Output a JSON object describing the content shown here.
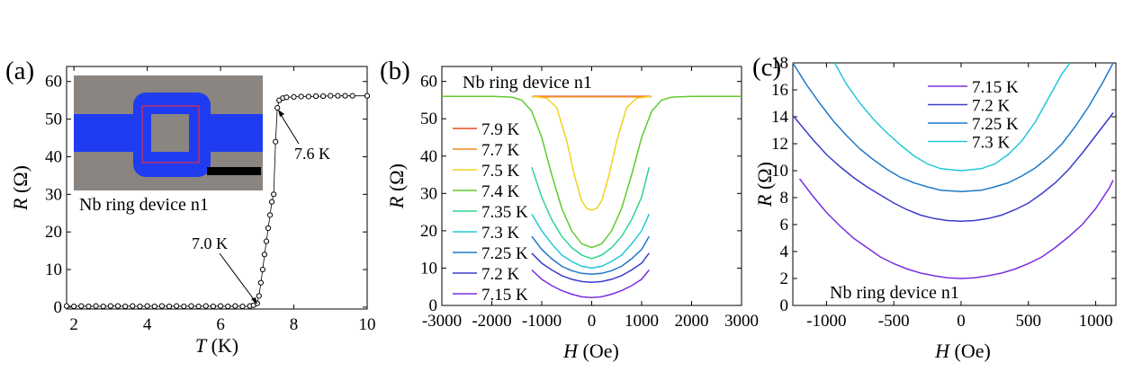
{
  "chart_data": [
    {
      "panel_label": "(a)",
      "type": "scatter",
      "xlabel_var": "T",
      "xlabel_unit": " (K)",
      "ylabel_var": "R",
      "ylabel_unit": " (Ω)",
      "xlim": [
        1.8,
        10.0
      ],
      "ylim": [
        -0.5,
        64
      ],
      "xticks": [
        "2",
        "4",
        "6",
        "8",
        "10"
      ],
      "yticks": [
        "0",
        "10",
        "20",
        "30",
        "40",
        "50",
        "60"
      ],
      "inset_label": "Nb ring device n1",
      "annotations": [
        "7.0 K",
        "7.6 K"
      ],
      "colors": {
        "data": "#000000",
        "inset_bg": "#8a8580",
        "ring": "#1f3cf0",
        "box": "#e0304a"
      },
      "series": [
        {
          "x": [
            1.8,
            2.0,
            2.2,
            2.4,
            2.6,
            2.8,
            3.0,
            3.2,
            3.4,
            3.6,
            3.8,
            4.0,
            4.2,
            4.4,
            4.6,
            4.8,
            5.0,
            5.2,
            5.4,
            5.6,
            5.8,
            6.0,
            6.2,
            6.4,
            6.6,
            6.8,
            6.9,
            7.0,
            7.05,
            7.1,
            7.15,
            7.2,
            7.25,
            7.3,
            7.35,
            7.4,
            7.45,
            7.5,
            7.55,
            7.6,
            7.7,
            7.8,
            8.0,
            8.2,
            8.4,
            8.6,
            8.8,
            9.0,
            9.2,
            9.4,
            9.6,
            10.0
          ],
          "y": [
            0.3,
            0.2,
            0.3,
            0.2,
            0.3,
            0.2,
            0.3,
            0.3,
            0.2,
            0.3,
            0.2,
            0.3,
            0.2,
            0.3,
            0.2,
            0.3,
            0.2,
            0.3,
            0.2,
            0.3,
            0.2,
            0.3,
            0.2,
            0.3,
            0.2,
            0.3,
            0.5,
            1.0,
            3.0,
            6.5,
            10.0,
            14.0,
            17.5,
            21.0,
            24.5,
            28.0,
            30.0,
            44.0,
            53.0,
            55.0,
            55.6,
            55.8,
            55.9,
            56.0,
            56.0,
            56.1,
            56.1,
            56.2,
            56.2,
            56.2,
            56.2,
            56.2
          ]
        }
      ]
    },
    {
      "panel_label": "(b)",
      "type": "line",
      "xlabel_var": "H",
      "xlabel_unit": " (Oe)",
      "ylabel_var": "R",
      "ylabel_unit": " (Ω)",
      "xlim": [
        -3000,
        3000
      ],
      "ylim": [
        0,
        64
      ],
      "xticks": [
        "-3000",
        "-2000",
        "-1000",
        "0",
        "1000",
        "2000",
        "3000"
      ],
      "yticks": [
        "0",
        "10",
        "20",
        "30",
        "40",
        "50",
        "60"
      ],
      "inner_title": "Nb ring device n1",
      "series": [
        {
          "name": "7.9 K",
          "color": "#e64b1e",
          "x": [
            -1200,
            -800,
            -400,
            0,
            400,
            800,
            1200
          ],
          "y": [
            56,
            56,
            56,
            56,
            56,
            56,
            56
          ]
        },
        {
          "name": "7.7 K",
          "color": "#f08a1e",
          "x": [
            -1200,
            -800,
            -400,
            0,
            400,
            800,
            1200
          ],
          "y": [
            55.9,
            55.9,
            55.9,
            55.9,
            55.9,
            55.9,
            55.9
          ]
        },
        {
          "name": "7.5 K",
          "color": "#f2d21e",
          "x": [
            -1200,
            -900,
            -700,
            -500,
            -350,
            -200,
            -100,
            0,
            100,
            200,
            350,
            500,
            700,
            900,
            1200
          ],
          "y": [
            56,
            55.5,
            53,
            44,
            35,
            28,
            26,
            25.5,
            26,
            28,
            35,
            44,
            53,
            55.5,
            56
          ]
        },
        {
          "name": "7.4 K",
          "color": "#5fcc2e",
          "x": [
            -3000,
            -2000,
            -1600,
            -1400,
            -1200,
            -1000,
            -800,
            -600,
            -400,
            -200,
            0,
            200,
            400,
            600,
            800,
            1000,
            1200,
            1400,
            1600,
            2000,
            3000
          ],
          "y": [
            56,
            56,
            55.8,
            55,
            52,
            45,
            35,
            26,
            20,
            16.5,
            15.5,
            16.5,
            20,
            26,
            35,
            45,
            52,
            55,
            55.8,
            56,
            56
          ]
        },
        {
          "name": "7.35 K",
          "color": "#2ed48a",
          "x": [
            -1200,
            -1000,
            -800,
            -600,
            -400,
            -200,
            0,
            200,
            400,
            600,
            800,
            1000,
            1150
          ],
          "y": [
            37,
            29,
            23,
            18.5,
            15.5,
            13.5,
            12.5,
            13.5,
            15.5,
            18.5,
            23,
            29,
            37
          ]
        },
        {
          "name": "7.3 K",
          "color": "#22c8d8",
          "x": [
            -1200,
            -1000,
            -800,
            -600,
            -400,
            -200,
            0,
            200,
            400,
            600,
            800,
            1000,
            1150
          ],
          "y": [
            24.5,
            20,
            16.5,
            13.5,
            11.8,
            10.5,
            10,
            10.5,
            11.8,
            13.5,
            16.5,
            20,
            24.5
          ]
        },
        {
          "name": "7.25 K",
          "color": "#1e78c8",
          "x": [
            -1200,
            -1000,
            -800,
            -600,
            -400,
            -200,
            0,
            200,
            400,
            600,
            800,
            1000,
            1150
          ],
          "y": [
            18.5,
            15,
            12.5,
            10.5,
            9.3,
            8.6,
            8.4,
            8.6,
            9.3,
            10.5,
            12.5,
            15,
            18.5
          ]
        },
        {
          "name": "7.2 K",
          "color": "#3a3cc8",
          "x": [
            -1200,
            -1000,
            -800,
            -600,
            -400,
            -200,
            0,
            200,
            400,
            600,
            800,
            1000,
            1150
          ],
          "y": [
            14,
            11.3,
            9.5,
            8,
            7,
            6.4,
            6.2,
            6.4,
            7,
            8,
            9.5,
            11.3,
            14
          ]
        },
        {
          "name": "7.15 K",
          "color": "#7a2ee0",
          "x": [
            -1200,
            -1000,
            -800,
            -600,
            -400,
            -200,
            0,
            200,
            400,
            600,
            800,
            1000,
            1150
          ],
          "y": [
            9.5,
            7,
            5.3,
            4,
            3,
            2.3,
            2.1,
            2.3,
            3,
            4,
            5.3,
            7,
            9.5
          ]
        }
      ]
    },
    {
      "panel_label": "(c)",
      "type": "line",
      "xlabel_var": "H",
      "xlabel_unit": " (Oe)",
      "ylabel_var": "R",
      "ylabel_unit": " (Ω)",
      "xlim": [
        -1250,
        1150
      ],
      "ylim": [
        0,
        18
      ],
      "xticks": [
        "-1000",
        "-500",
        "0",
        "500",
        "1000"
      ],
      "yticks": [
        "0",
        "2",
        "4",
        "6",
        "8",
        "10",
        "12",
        "14",
        "16",
        "18"
      ],
      "inner_title": "Nb ring device n1",
      "series": [
        {
          "name": "7.15 K",
          "color": "#7a2ee0",
          "x": [
            -1200,
            -1100,
            -1000,
            -900,
            -800,
            -700,
            -600,
            -500,
            -400,
            -300,
            -200,
            -100,
            0,
            100,
            200,
            300,
            400,
            500,
            600,
            700,
            800,
            900,
            1000,
            1100,
            1130
          ],
          "y": [
            9.4,
            8.1,
            6.9,
            5.9,
            5.0,
            4.3,
            3.6,
            3.1,
            2.7,
            2.4,
            2.2,
            2.05,
            2.0,
            2.05,
            2.2,
            2.4,
            2.7,
            3.1,
            3.6,
            4.3,
            5.1,
            6.0,
            7.2,
            8.7,
            9.3
          ]
        },
        {
          "name": "7.2 K",
          "color": "#3a3cc8",
          "x": [
            -1250,
            -1100,
            -1000,
            -900,
            -800,
            -700,
            -600,
            -500,
            -400,
            -300,
            -200,
            -100,
            0,
            100,
            200,
            300,
            400,
            500,
            600,
            700,
            800,
            900,
            1000,
            1100,
            1130
          ],
          "y": [
            14.1,
            12.3,
            11.2,
            10.3,
            9.5,
            8.8,
            8.2,
            7.6,
            7.1,
            6.7,
            6.45,
            6.3,
            6.25,
            6.3,
            6.45,
            6.7,
            7.1,
            7.6,
            8.3,
            9.1,
            10.1,
            11.3,
            12.6,
            13.9,
            14.3
          ]
        },
        {
          "name": "7.25 K",
          "color": "#1e78c8",
          "x": [
            -1250,
            -1150,
            -1050,
            -950,
            -850,
            -750,
            -650,
            -550,
            -450,
            -350,
            -250,
            -150,
            0,
            150,
            250,
            350,
            450,
            550,
            650,
            750,
            850,
            950,
            1050,
            1130
          ],
          "y": [
            18,
            16.4,
            15,
            13.7,
            12.6,
            11.6,
            10.8,
            10.1,
            9.5,
            9.1,
            8.8,
            8.55,
            8.45,
            8.55,
            8.8,
            9.1,
            9.6,
            10.2,
            11,
            12,
            13.3,
            14.8,
            16.5,
            18
          ]
        },
        {
          "name": "7.3 K",
          "color": "#22c8d8",
          "x": [
            -940,
            -850,
            -750,
            -650,
            -550,
            -450,
            -350,
            -250,
            -150,
            0,
            150,
            250,
            350,
            450,
            550,
            650,
            750,
            810
          ],
          "y": [
            18,
            16.4,
            15,
            13.8,
            12.8,
            11.9,
            11.1,
            10.5,
            10.15,
            10.0,
            10.15,
            10.5,
            11.2,
            12.2,
            13.6,
            15.4,
            17.2,
            18
          ]
        }
      ]
    }
  ]
}
